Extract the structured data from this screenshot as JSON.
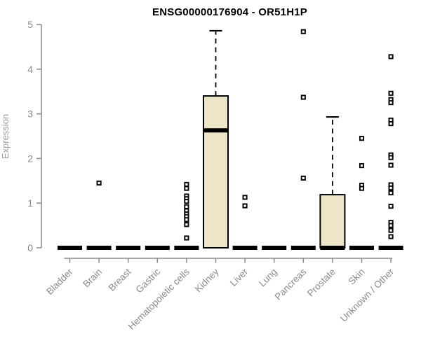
{
  "chart_data": {
    "type": "boxplot",
    "title": "ENSG00000176904 - OR51H1P",
    "ylabel": "Expression",
    "xlabel": "",
    "ylim": [
      0,
      5
    ],
    "yticks": [
      0,
      1,
      2,
      3,
      4,
      5
    ],
    "grid": false,
    "legend": "none",
    "categories": [
      "Bladder",
      "Brain",
      "Breast",
      "Gastric",
      "Hematopoietic cells",
      "Kidney",
      "Liver",
      "Lung",
      "Pancreas",
      "Prostate",
      "Skin",
      "Unknown / Other"
    ],
    "boxes": [
      {
        "category": "Bladder",
        "whisker_low": 0,
        "q1": 0,
        "median": 0,
        "q3": 0,
        "whisker_high": 0,
        "outliers": []
      },
      {
        "category": "Brain",
        "whisker_low": 0,
        "q1": 0,
        "median": 0,
        "q3": 0,
        "whisker_high": 0,
        "outliers": [
          1.45
        ]
      },
      {
        "category": "Breast",
        "whisker_low": 0,
        "q1": 0,
        "median": 0,
        "q3": 0,
        "whisker_high": 0,
        "outliers": []
      },
      {
        "category": "Gastric",
        "whisker_low": 0,
        "q1": 0,
        "median": 0,
        "q3": 0,
        "whisker_high": 0,
        "outliers": []
      },
      {
        "category": "Hematopoietic cells",
        "whisker_low": 0,
        "q1": 0,
        "median": 0,
        "q3": 0,
        "whisker_high": 0,
        "outliers": [
          1.42,
          1.33,
          1.16,
          1.1,
          1.04,
          0.92,
          0.83,
          0.76,
          0.7,
          0.63,
          0.52,
          0.22
        ]
      },
      {
        "category": "Kidney",
        "whisker_low": 0,
        "q1": 0,
        "median": 2.63,
        "q3": 3.4,
        "whisker_high": 4.86,
        "outliers": []
      },
      {
        "category": "Liver",
        "whisker_low": 0,
        "q1": 0,
        "median": 0,
        "q3": 0,
        "whisker_high": 0,
        "outliers": [
          1.13,
          0.94
        ]
      },
      {
        "category": "Lung",
        "whisker_low": 0,
        "q1": 0,
        "median": 0,
        "q3": 0,
        "whisker_high": 0,
        "outliers": []
      },
      {
        "category": "Pancreas",
        "whisker_low": 0,
        "q1": 0,
        "median": 0,
        "q3": 0,
        "whisker_high": 0,
        "outliers": [
          4.84,
          3.37,
          1.56
        ]
      },
      {
        "category": "Prostate",
        "whisker_low": 0,
        "q1": 0,
        "median": 0,
        "q3": 1.19,
        "whisker_high": 2.93,
        "outliers": []
      },
      {
        "category": "Skin",
        "whisker_low": 0,
        "q1": 0,
        "median": 0,
        "q3": 0,
        "whisker_high": 0,
        "outliers": [
          2.45,
          1.84,
          1.4,
          1.33
        ]
      },
      {
        "category": "Unknown / Other",
        "whisker_low": 0,
        "q1": 0,
        "median": 0,
        "q3": 0,
        "whisker_high": 0,
        "outliers": [
          4.28,
          3.46,
          3.32,
          3.25,
          2.86,
          2.78,
          2.08,
          2.02,
          1.85,
          1.41,
          1.34,
          1.23,
          0.93,
          0.57,
          0.5,
          0.39,
          0.25
        ]
      }
    ],
    "colors": {
      "box_fill": "#ede5c7",
      "box_border": "#000000",
      "median": "#000000",
      "whisker": "#000000",
      "outlier": "#000000",
      "axis": "#8a8a8a",
      "tick_label": "#8a8a8a",
      "category_label": "#8a8a8a",
      "title": "#000000",
      "background": "#ffffff"
    }
  }
}
